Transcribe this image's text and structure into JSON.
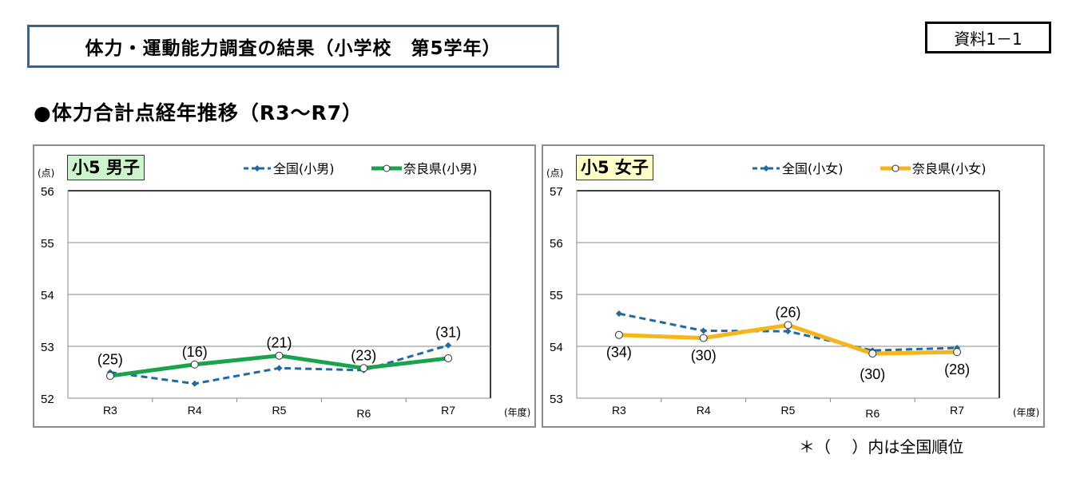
{
  "header": {
    "title": "体力・運動能力調査の結果（小学校　第5学年）",
    "doc_number": "資料1－1",
    "subtitle": "●体力合計点経年推移（R3～R7）"
  },
  "footnote": "＊（　 ）内は全国順位",
  "colors": {
    "national": "#1f6aa5",
    "nara_boys": "#1aa34a",
    "nara_girls": "#f4b61a",
    "badge_boys_bg": "#ccf5cc",
    "badge_girls_bg": "#ffffc8"
  },
  "charts": [
    {
      "badge": "小5 男子",
      "unit": "(点)",
      "x_unit": "(年度)",
      "legend": [
        "全国(小男)",
        "奈良県(小男)"
      ],
      "yticks": [
        "56",
        "55",
        "54",
        "53",
        "52"
      ],
      "categories": [
        "R3",
        "R4",
        "R5",
        "R6",
        "R7"
      ],
      "rank_labels": [
        "(25)",
        "(16)",
        "(21)",
        "(23)",
        "(31)"
      ]
    },
    {
      "badge": "小5 女子",
      "unit": "(点)",
      "x_unit": "(年度)",
      "legend": [
        "全国(小女)",
        "奈良県(小女)"
      ],
      "yticks": [
        "57",
        "56",
        "55",
        "54",
        "53"
      ],
      "categories": [
        "R3",
        "R4",
        "R5",
        "R6",
        "R7"
      ],
      "rank_labels": [
        "(34)",
        "(30)",
        "(26)",
        "(30)",
        "(28)"
      ]
    }
  ],
  "chart_data": [
    {
      "type": "line",
      "title": "小5 男子",
      "xlabel": "(年度)",
      "ylabel": "(点)",
      "categories": [
        "R3",
        "R4",
        "R5",
        "R6",
        "R7"
      ],
      "ylim": [
        52,
        56
      ],
      "grid": true,
      "legend_position": "top",
      "series": [
        {
          "name": "全国(小男)",
          "style": "dashed-diamond",
          "values": [
            52.5,
            52.28,
            52.58,
            52.54,
            53.02
          ]
        },
        {
          "name": "奈良県(小男)",
          "style": "solid-circle",
          "values": [
            52.43,
            52.65,
            52.82,
            52.58,
            52.77
          ]
        }
      ],
      "annotations": [
        "(25)",
        "(16)",
        "(21)",
        "(23)",
        "(31)"
      ],
      "annotation_note": "( ) = 全国順位 (national rank of Nara)"
    },
    {
      "type": "line",
      "title": "小5 女子",
      "xlabel": "(年度)",
      "ylabel": "(点)",
      "categories": [
        "R3",
        "R4",
        "R5",
        "R6",
        "R7"
      ],
      "ylim": [
        53,
        57
      ],
      "grid": true,
      "legend_position": "top",
      "series": [
        {
          "name": "全国(小女)",
          "style": "dashed-diamond",
          "values": [
            54.63,
            54.3,
            54.29,
            53.92,
            53.97
          ]
        },
        {
          "name": "奈良県(小女)",
          "style": "solid-circle",
          "values": [
            54.22,
            54.16,
            54.41,
            53.86,
            53.89
          ]
        }
      ],
      "annotations": [
        "(34)",
        "(30)",
        "(26)",
        "(30)",
        "(28)"
      ],
      "annotation_note": "( ) = 全国順位 (national rank of Nara)"
    }
  ]
}
